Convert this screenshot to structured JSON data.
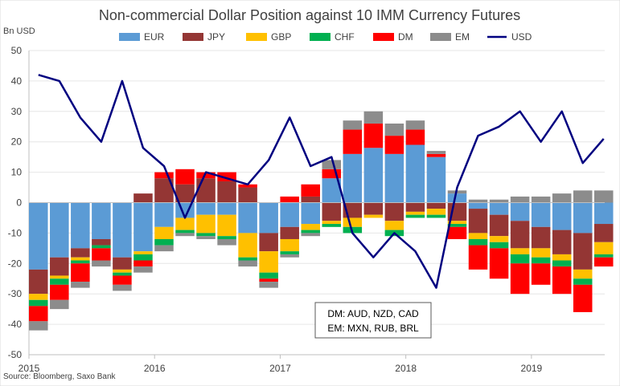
{
  "chart_data": {
    "type": "bar",
    "title": "Non-commercial Dollar Position against 10 IMM Currency Futures",
    "ylabel": "Bn USD",
    "ylim": [
      -50,
      50
    ],
    "yticks": [
      50,
      40,
      30,
      20,
      10,
      0,
      -10,
      -20,
      -30,
      -40,
      -50
    ],
    "xlim": [
      "2015-01",
      "2019-08"
    ],
    "xticks": [
      "2015",
      "2016",
      "2017",
      "2018",
      "2019"
    ],
    "legend_position": "top",
    "source": "Source: Bloomberg, Saxo Bank",
    "annotations": [
      "DM: AUD, NZD, CAD",
      "EM: MXN, RUB, BRL"
    ],
    "colors": {
      "EUR": "#5b9bd5",
      "JPY": "#943634",
      "GBP": "#ffc000",
      "CHF": "#00b050",
      "DM": "#ff0000",
      "EM": "#8c8c8c",
      "USD": "#000080"
    },
    "x": [
      "2015-01",
      "2015-03",
      "2015-05",
      "2015-07",
      "2015-09",
      "2015-11",
      "2016-01",
      "2016-03",
      "2016-05",
      "2016-07",
      "2016-09",
      "2016-11",
      "2017-01",
      "2017-03",
      "2017-05",
      "2017-07",
      "2017-09",
      "2017-11",
      "2018-01",
      "2018-03",
      "2018-05",
      "2018-07",
      "2018-09",
      "2018-11",
      "2019-01",
      "2019-03",
      "2019-05",
      "2019-07"
    ],
    "series": [
      {
        "name": "EUR",
        "type": "bar",
        "values": [
          -22,
          -18,
          -15,
          -12,
          -18,
          -16,
          -8,
          -5,
          -4,
          -4,
          -10,
          -10,
          -8,
          -7,
          8,
          16,
          18,
          16,
          19,
          15,
          3,
          -2,
          -4,
          -6,
          -8,
          -9,
          -10,
          -7
        ]
      },
      {
        "name": "JPY",
        "type": "bar",
        "values": [
          -8,
          -6,
          -3,
          -2,
          -4,
          3,
          8,
          6,
          8,
          7,
          5,
          -6,
          -4,
          2,
          -6,
          -5,
          -4,
          -6,
          -3,
          -2,
          -6,
          -8,
          -7,
          -9,
          -7,
          -8,
          -12,
          -6
        ]
      },
      {
        "name": "GBP",
        "type": "bar",
        "values": [
          -2,
          -1,
          -1,
          0,
          -1,
          -1,
          -4,
          -4,
          -6,
          -7,
          -8,
          -7,
          -4,
          -2,
          -1,
          -3,
          -1,
          -3,
          -1,
          -2,
          -1,
          -2,
          -2,
          -2,
          -3,
          -2,
          -3,
          -4
        ]
      },
      {
        "name": "CHF",
        "type": "bar",
        "values": [
          -2,
          -2,
          -1,
          -1,
          -1,
          -2,
          -2,
          -1,
          -1,
          -1,
          -1,
          -2,
          -1,
          -1,
          -1,
          -2,
          0,
          -2,
          -1,
          -1,
          -1,
          -2,
          -2,
          -3,
          -2,
          -2,
          -2,
          -1
        ]
      },
      {
        "name": "DM",
        "type": "bar",
        "values": [
          -5,
          -5,
          -6,
          -4,
          -3,
          -2,
          2,
          5,
          2,
          3,
          1,
          -1,
          2,
          4,
          3,
          8,
          8,
          6,
          5,
          1,
          -4,
          -8,
          -10,
          -10,
          -7,
          -9,
          -9,
          -3
        ]
      },
      {
        "name": "EM",
        "type": "bar",
        "values": [
          -3,
          -3,
          -2,
          -2,
          -2,
          -2,
          -2,
          -1,
          -1,
          -2,
          -2,
          -2,
          -1,
          -1,
          3,
          3,
          4,
          4,
          3,
          1,
          1,
          1,
          1,
          2,
          2,
          3,
          4,
          4
        ]
      },
      {
        "name": "USD",
        "type": "line",
        "values": [
          42,
          40,
          28,
          20,
          40,
          18,
          12,
          -5,
          10,
          8,
          6,
          14,
          28,
          12,
          15,
          -10,
          -18,
          -10,
          -16,
          -28,
          5,
          22,
          25,
          30,
          20,
          30,
          13,
          21
        ]
      }
    ]
  }
}
